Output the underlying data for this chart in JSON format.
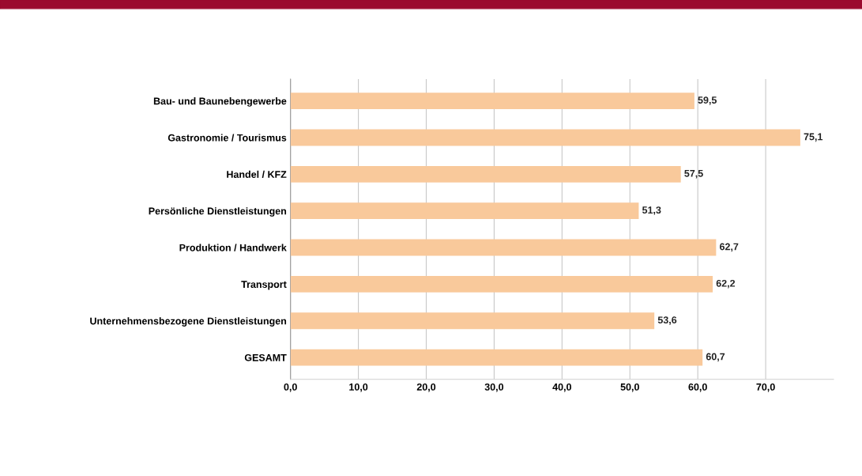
{
  "chart_data": {
    "type": "bar",
    "orientation": "horizontal",
    "categories": [
      "Bau- und Baunebengewerbe",
      "Gastronomie / Tourismus",
      "Handel / KFZ",
      "Persönliche Dienstleistungen",
      "Produktion / Handwerk",
      "Transport",
      "Unternehmensbezogene Dienstleistungen",
      "GESAMT"
    ],
    "values": [
      59.5,
      75.1,
      57.5,
      51.3,
      62.7,
      62.2,
      53.6,
      60.7
    ],
    "value_labels": [
      "59,5",
      "75,1",
      "57,5",
      "51,3",
      "62,7",
      "62,2",
      "53,6",
      "60,7"
    ],
    "color": "#f9c99b",
    "xlim": [
      0,
      80
    ],
    "xticks": [
      {
        "value": 0,
        "label": "0,0"
      },
      {
        "value": 10,
        "label": "10,0"
      },
      {
        "value": 20,
        "label": "20,0"
      },
      {
        "value": 30,
        "label": "30,0"
      },
      {
        "value": 40,
        "label": "40,0"
      },
      {
        "value": 50,
        "label": "50,0"
      },
      {
        "value": 60,
        "label": "60,0"
      },
      {
        "value": 70,
        "label": "70,0"
      }
    ],
    "grid": "x"
  }
}
